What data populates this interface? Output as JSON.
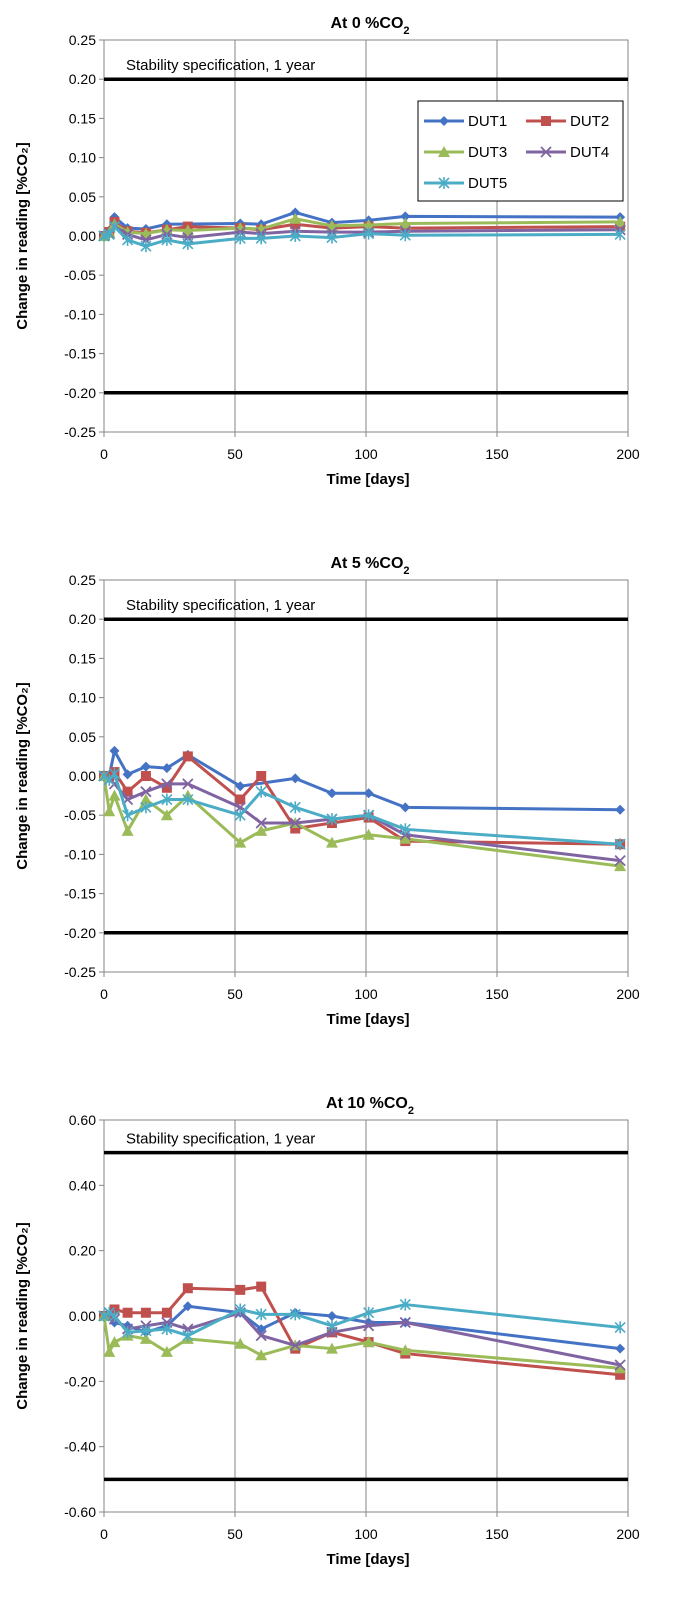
{
  "chart_data": [
    {
      "type": "line",
      "title": "At 0 %CO",
      "title_subscript": "2",
      "xlabel": "Time [days]",
      "ylabel": "Change in reading [%CO₂]",
      "xlim": [
        0,
        200
      ],
      "ylim": [
        -0.25,
        0.25
      ],
      "xticks": [
        0,
        50,
        100,
        150,
        200
      ],
      "xtick_labels": [
        "0",
        "50",
        "100",
        "150",
        "200"
      ],
      "yticks": [
        -0.25,
        -0.2,
        -0.15,
        -0.1,
        -0.05,
        0,
        0.05,
        0.1,
        0.15,
        0.2,
        0.25
      ],
      "ytick_labels": [
        "-0.25",
        "-0.20",
        "-0.15",
        "-0.10",
        "-0.05",
        "0.00",
        "0.05",
        "0.10",
        "0.15",
        "0.20",
        "0.25"
      ],
      "grid": "vertical",
      "spec_label": "Stability specification, 1 year",
      "spec_limits": [
        0.2,
        -0.2
      ],
      "legend": {
        "placement": "top-right",
        "items": [
          "DUT1",
          "DUT2",
          "DUT3",
          "DUT4",
          "DUT5"
        ]
      },
      "series": [
        {
          "name": "DUT1",
          "color": "#4472C4",
          "marker": "diamond",
          "x": [
            0,
            2,
            4,
            9,
            16,
            24,
            52,
            60,
            73,
            87,
            101,
            115,
            197
          ],
          "y": [
            0.0,
            0.007,
            0.024,
            0.01,
            0.009,
            0.015,
            0.016,
            0.015,
            0.03,
            0.017,
            0.02,
            0.025,
            0.024
          ]
        },
        {
          "name": "DUT2",
          "color": "#C0504D",
          "marker": "square",
          "x": [
            0,
            2,
            4,
            9,
            16,
            24,
            32,
            52,
            60,
            73,
            87,
            101,
            115,
            197
          ],
          "y": [
            0.0,
            0.005,
            0.018,
            0.006,
            0.004,
            0.008,
            0.012,
            0.01,
            0.008,
            0.015,
            0.01,
            0.012,
            0.01,
            0.012
          ]
        },
        {
          "name": "DUT3",
          "color": "#9BBB59",
          "marker": "triangle",
          "x": [
            0,
            2,
            4,
            9,
            16,
            24,
            32,
            52,
            60,
            73,
            87,
            101,
            115,
            197
          ],
          "y": [
            0.0,
            0.004,
            0.015,
            0.005,
            0.003,
            0.008,
            0.007,
            0.01,
            0.009,
            0.022,
            0.013,
            0.014,
            0.016,
            0.018
          ]
        },
        {
          "name": "DUT4",
          "color": "#8064A2",
          "marker": "x",
          "x": [
            0,
            2,
            4,
            9,
            16,
            24,
            32,
            52,
            60,
            73,
            87,
            101,
            115,
            197
          ],
          "y": [
            0.0,
            0.003,
            0.012,
            0.002,
            -0.005,
            0.002,
            -0.002,
            0.005,
            0.003,
            0.006,
            0.005,
            0.005,
            0.006,
            0.008
          ]
        },
        {
          "name": "DUT5",
          "color": "#4BACC6",
          "marker": "star",
          "x": [
            0,
            2,
            4,
            9,
            16,
            24,
            32,
            52,
            60,
            73,
            87,
            101,
            115,
            197
          ],
          "y": [
            0.0,
            0.002,
            0.012,
            -0.005,
            -0.013,
            -0.005,
            -0.01,
            -0.003,
            -0.003,
            0.0,
            -0.002,
            0.003,
            0.001,
            0.002
          ]
        }
      ]
    },
    {
      "type": "line",
      "title": "At 5 %CO",
      "title_subscript": "2",
      "xlabel": "Time [days]",
      "ylabel": "Change in reading [%CO₂]",
      "xlim": [
        0,
        200
      ],
      "ylim": [
        -0.25,
        0.25
      ],
      "xticks": [
        0,
        50,
        100,
        150,
        200
      ],
      "xtick_labels": [
        "0",
        "50",
        "100",
        "150",
        "200"
      ],
      "yticks": [
        -0.25,
        -0.2,
        -0.15,
        -0.1,
        -0.05,
        0,
        0.05,
        0.1,
        0.15,
        0.2,
        0.25
      ],
      "ytick_labels": [
        "-0.25",
        "-0.20",
        "-0.15",
        "-0.10",
        "-0.05",
        "0.00",
        "0.05",
        "0.10",
        "0.15",
        "0.20",
        "0.25"
      ],
      "grid": "vertical",
      "spec_label": "Stability specification, 1 year",
      "spec_limits": [
        0.2,
        -0.2
      ],
      "series": [
        {
          "name": "DUT1",
          "color": "#4472C4",
          "marker": "diamond",
          "x": [
            0,
            2,
            4,
            9,
            16,
            24,
            32,
            52,
            73,
            87,
            101,
            115,
            197
          ],
          "y": [
            0.0,
            0.0,
            0.032,
            0.002,
            0.012,
            0.01,
            0.027,
            -0.013,
            -0.003,
            -0.022,
            -0.022,
            -0.04,
            -0.043
          ]
        },
        {
          "name": "DUT2",
          "color": "#C0504D",
          "marker": "square",
          "x": [
            0,
            2,
            4,
            9,
            16,
            24,
            32,
            52,
            60,
            73,
            87,
            101,
            115,
            197
          ],
          "y": [
            0.0,
            0.0,
            0.005,
            -0.02,
            0.0,
            -0.015,
            0.025,
            -0.03,
            0.0,
            -0.067,
            -0.06,
            -0.053,
            -0.083,
            -0.087
          ]
        },
        {
          "name": "DUT3",
          "color": "#9BBB59",
          "marker": "triangle",
          "x": [
            0,
            2,
            4,
            9,
            16,
            24,
            32,
            52,
            60,
            73,
            87,
            101,
            115,
            197
          ],
          "y": [
            0.0,
            -0.045,
            -0.025,
            -0.07,
            -0.03,
            -0.05,
            -0.025,
            -0.085,
            -0.07,
            -0.06,
            -0.085,
            -0.075,
            -0.08,
            -0.115
          ]
        },
        {
          "name": "DUT4",
          "color": "#8064A2",
          "marker": "x",
          "x": [
            0,
            2,
            4,
            9,
            16,
            24,
            32,
            52,
            60,
            73,
            87,
            101,
            115,
            197
          ],
          "y": [
            0.0,
            -0.005,
            -0.01,
            -0.03,
            -0.02,
            -0.01,
            -0.01,
            -0.04,
            -0.06,
            -0.06,
            -0.055,
            -0.05,
            -0.075,
            -0.108
          ]
        },
        {
          "name": "DUT5",
          "color": "#4BACC6",
          "marker": "star",
          "x": [
            0,
            2,
            4,
            9,
            16,
            24,
            32,
            52,
            60,
            73,
            87,
            101,
            115,
            197
          ],
          "y": [
            0.0,
            -0.005,
            0.003,
            -0.05,
            -0.04,
            -0.03,
            -0.03,
            -0.05,
            -0.02,
            -0.04,
            -0.055,
            -0.05,
            -0.068,
            -0.087
          ]
        }
      ]
    },
    {
      "type": "line",
      "title": "At 10 %CO",
      "title_subscript": "2",
      "xlabel": "Time [days]",
      "ylabel": "Change in reading [%CO₂]",
      "xlim": [
        0,
        200
      ],
      "ylim": [
        -0.6,
        0.6
      ],
      "xticks": [
        0,
        50,
        100,
        150,
        200
      ],
      "xtick_labels": [
        "0",
        "50",
        "100",
        "150",
        "200"
      ],
      "yticks": [
        -0.6,
        -0.4,
        -0.2,
        0,
        0.2,
        0.4,
        0.6
      ],
      "ytick_labels": [
        "-0.60",
        "-0.40",
        "-0.20",
        "0.00",
        "0.20",
        "0.40",
        "0.60"
      ],
      "grid": "vertical",
      "spec_label": "Stability specification, 1 year",
      "spec_limits": [
        0.5,
        -0.5
      ],
      "series": [
        {
          "name": "DUT1",
          "color": "#4472C4",
          "marker": "diamond",
          "x": [
            0,
            2,
            4,
            9,
            16,
            24,
            32,
            52,
            60,
            73,
            87,
            101,
            115,
            197
          ],
          "y": [
            0.0,
            0.0,
            -0.02,
            -0.03,
            -0.05,
            -0.03,
            0.03,
            0.01,
            -0.04,
            0.01,
            0.0,
            -0.02,
            -0.02,
            -0.1
          ]
        },
        {
          "name": "DUT2",
          "color": "#C0504D",
          "marker": "square",
          "x": [
            0,
            2,
            4,
            9,
            16,
            24,
            32,
            52,
            60,
            73,
            87,
            101,
            115,
            197
          ],
          "y": [
            0.0,
            0.0,
            0.02,
            0.01,
            0.01,
            0.01,
            0.085,
            0.08,
            0.09,
            -0.1,
            -0.05,
            -0.08,
            -0.115,
            -0.18
          ]
        },
        {
          "name": "DUT3",
          "color": "#9BBB59",
          "marker": "triangle",
          "x": [
            0,
            2,
            4,
            9,
            16,
            24,
            32,
            52,
            60,
            73,
            87,
            101,
            115,
            197
          ],
          "y": [
            0.0,
            -0.11,
            -0.08,
            -0.06,
            -0.07,
            -0.11,
            -0.07,
            -0.085,
            -0.12,
            -0.09,
            -0.1,
            -0.08,
            -0.105,
            -0.16
          ]
        },
        {
          "name": "DUT4",
          "color": "#8064A2",
          "marker": "x",
          "x": [
            0,
            2,
            4,
            9,
            16,
            24,
            32,
            52,
            60,
            73,
            87,
            101,
            115,
            197
          ],
          "y": [
            0.0,
            0.01,
            -0.01,
            -0.04,
            -0.03,
            -0.02,
            -0.04,
            0.01,
            -0.06,
            -0.09,
            -0.05,
            -0.03,
            -0.02,
            -0.15
          ]
        },
        {
          "name": "DUT5",
          "color": "#4BACC6",
          "marker": "star",
          "x": [
            0,
            2,
            4,
            9,
            16,
            24,
            32,
            52,
            60,
            73,
            87,
            101,
            115,
            197
          ],
          "y": [
            0.0,
            0.01,
            0.0,
            -0.05,
            -0.045,
            -0.04,
            -0.06,
            0.02,
            0.005,
            0.005,
            -0.03,
            0.01,
            0.035,
            -0.035
          ]
        }
      ]
    }
  ]
}
